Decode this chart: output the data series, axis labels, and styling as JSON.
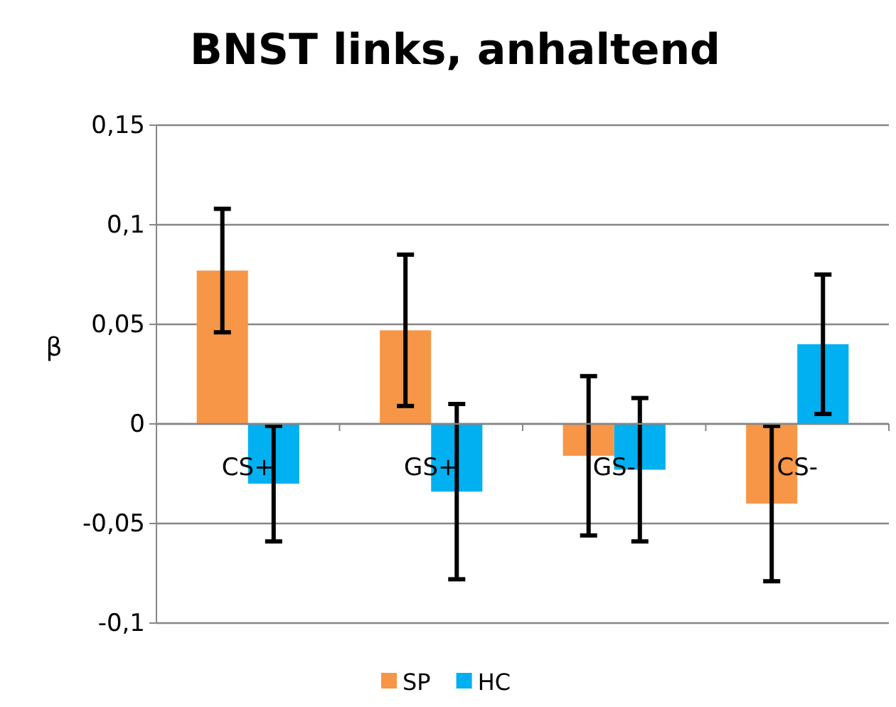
{
  "chart_data": {
    "type": "bar",
    "title": "BNST links, anhaltend",
    "ylabel": "β",
    "categories": [
      "CS+",
      "GS+",
      "GS-",
      "CS-"
    ],
    "series": [
      {
        "name": "SP",
        "color": "#f79646",
        "values": [
          0.077,
          0.047,
          -0.016,
          -0.04
        ],
        "errors": [
          0.031,
          0.038,
          0.04,
          0.039
        ]
      },
      {
        "name": "HC",
        "color": "#00b0f0",
        "values": [
          -0.03,
          -0.034,
          -0.023,
          0.04
        ],
        "errors": [
          0.029,
          0.044,
          0.036,
          0.035
        ]
      }
    ],
    "ylim": [
      -0.1,
      0.15
    ],
    "yticks": [
      {
        "value": -0.1,
        "label": "-0,1"
      },
      {
        "value": -0.05,
        "label": "-0,05"
      },
      {
        "value": 0,
        "label": "0"
      },
      {
        "value": 0.05,
        "label": "0,05"
      },
      {
        "value": 0.1,
        "label": "0,1"
      },
      {
        "value": 0.15,
        "label": "0,15"
      }
    ],
    "grid": "y",
    "legend": "bottom"
  }
}
